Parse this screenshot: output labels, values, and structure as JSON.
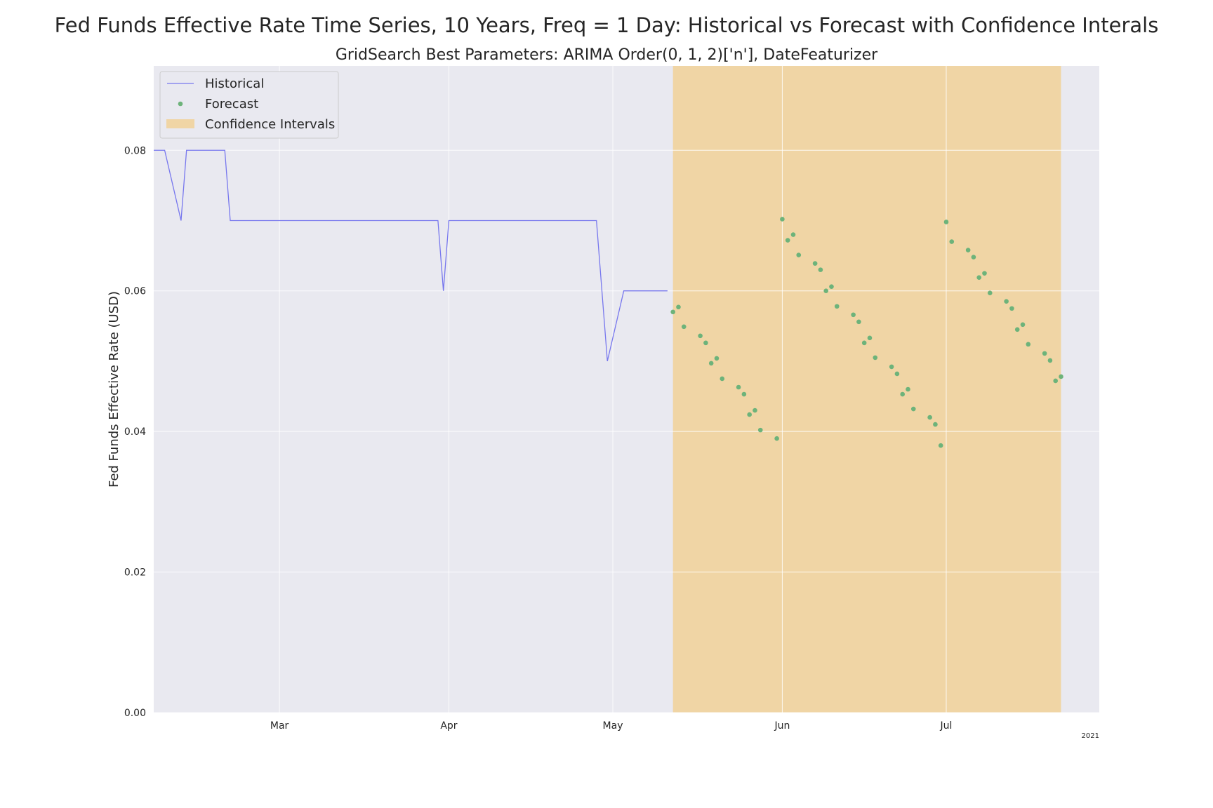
{
  "chart_data": {
    "type": "line",
    "title": "Fed Funds Effective Rate Time Series, 10 Years, Freq = 1 Day: Historical vs Forecast with Confidence Interals",
    "subtitle": "GridSearch Best Parameters: ARIMA Order(0, 1, 2)['n'], DateFeaturizer",
    "xlabel": "",
    "ylabel": "Fed Funds Effective Rate (USD)",
    "x_range": [
      "2021-02-06",
      "2021-07-29"
    ],
    "ylim": [
      0.0,
      0.092
    ],
    "yticks": [
      0.0,
      0.02,
      0.04,
      0.06,
      0.08
    ],
    "ytick_labels": [
      "0.00",
      "0.02",
      "0.04",
      "0.06",
      "0.08"
    ],
    "xticks": [
      {
        "date": "2021-03-01",
        "label": "Mar"
      },
      {
        "date": "2021-04-01",
        "label": "Apr"
      },
      {
        "date": "2021-05-01",
        "label": "May"
      },
      {
        "date": "2021-06-01",
        "label": "Jun"
      },
      {
        "date": "2021-07-01",
        "label": "Jul"
      }
    ],
    "x_offset_label": "2021",
    "grid": true,
    "legend_position": "upper-left",
    "series": [
      {
        "name": "Historical",
        "style": "line",
        "color": "#7777ee",
        "points": [
          [
            "2021-02-06",
            0.08
          ],
          [
            "2021-02-08",
            0.08
          ],
          [
            "2021-02-11",
            0.07
          ],
          [
            "2021-02-12",
            0.08
          ],
          [
            "2021-02-19",
            0.08
          ],
          [
            "2021-02-20",
            0.07
          ],
          [
            "2021-03-30",
            0.07
          ],
          [
            "2021-03-31",
            0.06
          ],
          [
            "2021-04-01",
            0.07
          ],
          [
            "2021-04-28",
            0.07
          ],
          [
            "2021-04-30",
            0.05
          ],
          [
            "2021-05-03",
            0.06
          ],
          [
            "2021-05-11",
            0.06
          ]
        ]
      },
      {
        "name": "Forecast",
        "style": "markers",
        "color": "#6db37a",
        "points": [
          [
            "2021-05-12",
            0.057
          ],
          [
            "2021-05-13",
            0.0577
          ],
          [
            "2021-05-14",
            0.0549
          ],
          [
            "2021-05-17",
            0.0536
          ],
          [
            "2021-05-18",
            0.0526
          ],
          [
            "2021-05-19",
            0.0497
          ],
          [
            "2021-05-20",
            0.0504
          ],
          [
            "2021-05-21",
            0.0475
          ],
          [
            "2021-05-24",
            0.0463
          ],
          [
            "2021-05-25",
            0.0453
          ],
          [
            "2021-05-26",
            0.0424
          ],
          [
            "2021-05-27",
            0.043
          ],
          [
            "2021-05-28",
            0.0402
          ],
          [
            "2021-05-31",
            0.039
          ],
          [
            "2021-06-01",
            0.0702
          ],
          [
            "2021-06-02",
            0.0672
          ],
          [
            "2021-06-03",
            0.068
          ],
          [
            "2021-06-04",
            0.0651
          ],
          [
            "2021-06-07",
            0.0639
          ],
          [
            "2021-06-08",
            0.063
          ],
          [
            "2021-06-09",
            0.06
          ],
          [
            "2021-06-10",
            0.0606
          ],
          [
            "2021-06-11",
            0.0578
          ],
          [
            "2021-06-14",
            0.0566
          ],
          [
            "2021-06-15",
            0.0556
          ],
          [
            "2021-06-16",
            0.0526
          ],
          [
            "2021-06-17",
            0.0533
          ],
          [
            "2021-06-18",
            0.0505
          ],
          [
            "2021-06-21",
            0.0492
          ],
          [
            "2021-06-22",
            0.0482
          ],
          [
            "2021-06-23",
            0.0453
          ],
          [
            "2021-06-24",
            0.046
          ],
          [
            "2021-06-25",
            0.0432
          ],
          [
            "2021-06-28",
            0.042
          ],
          [
            "2021-06-29",
            0.041
          ],
          [
            "2021-06-30",
            0.038
          ],
          [
            "2021-07-01",
            0.0698
          ],
          [
            "2021-07-02",
            0.067
          ],
          [
            "2021-07-05",
            0.0658
          ],
          [
            "2021-07-06",
            0.0648
          ],
          [
            "2021-07-07",
            0.0619
          ],
          [
            "2021-07-08",
            0.0625
          ],
          [
            "2021-07-09",
            0.0597
          ],
          [
            "2021-07-12",
            0.0585
          ],
          [
            "2021-07-13",
            0.0575
          ],
          [
            "2021-07-14",
            0.0545
          ],
          [
            "2021-07-15",
            0.0552
          ],
          [
            "2021-07-16",
            0.0524
          ],
          [
            "2021-07-19",
            0.0511
          ],
          [
            "2021-07-20",
            0.0501
          ],
          [
            "2021-07-21",
            0.0472
          ],
          [
            "2021-07-22",
            0.0478
          ]
        ]
      },
      {
        "name": "Confidence Intervals",
        "style": "band",
        "color": "#f0d5a5",
        "x_range": [
          "2021-05-12",
          "2021-07-22"
        ],
        "y_range": [
          0.0,
          0.092
        ]
      }
    ]
  }
}
